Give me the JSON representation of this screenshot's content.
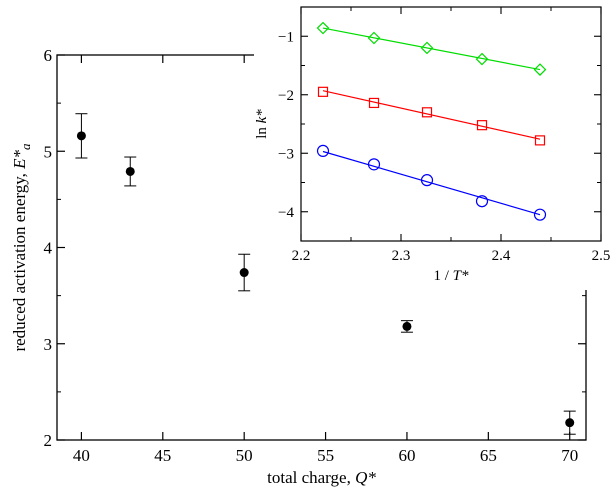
{
  "chart_data": [
    {
      "type": "scatter",
      "title": "",
      "xlabel": "total charge, ",
      "xlabel_var": "Q*",
      "ylabel": "reduced activation energy, ",
      "ylabel_var": "E*",
      "ylabel_sub": "a",
      "xlim": [
        38.5,
        71
      ],
      "ylim": [
        2,
        6
      ],
      "xticks": [
        40,
        45,
        50,
        55,
        60,
        65,
        70
      ],
      "yticks": [
        2,
        3,
        4,
        5,
        6
      ],
      "grid": false,
      "marker": "filled-circle",
      "series": [
        {
          "x": [
            40,
            43,
            50,
            60,
            70
          ],
          "y": [
            5.16,
            4.79,
            3.74,
            3.18,
            2.18
          ],
          "yerr": [
            0.23,
            0.15,
            0.19,
            0.06,
            0.12
          ]
        }
      ]
    },
    {
      "type": "scatter",
      "inset": true,
      "title": "",
      "xlabel": "1 / ",
      "xlabel_var": "T*",
      "ylabel": "ln ",
      "ylabel_var": "k*",
      "xlim": [
        2.2,
        2.5
      ],
      "ylim": [
        -4.5,
        -0.5
      ],
      "xticks": [
        2.2,
        2.3,
        2.4,
        2.5
      ],
      "yticks": [
        -4,
        -3,
        -2,
        -1
      ],
      "grid": false,
      "series": [
        {
          "color": "#00dd00",
          "marker": "diamond",
          "x": [
            2.222,
            2.273,
            2.326,
            2.381,
            2.439
          ],
          "y": [
            -0.86,
            -1.03,
            -1.2,
            -1.39,
            -1.57
          ],
          "fit": [
            [
              2.222,
              -0.86
            ],
            [
              2.439,
              -1.57
            ]
          ]
        },
        {
          "color": "#ff0000",
          "marker": "square",
          "x": [
            2.222,
            2.273,
            2.326,
            2.381,
            2.439
          ],
          "y": [
            -1.95,
            -2.14,
            -2.3,
            -2.52,
            -2.78
          ],
          "fit": [
            [
              2.222,
              -1.93
            ],
            [
              2.439,
              -2.76
            ]
          ]
        },
        {
          "color": "#0000ff",
          "marker": "circle",
          "x": [
            2.222,
            2.273,
            2.326,
            2.381,
            2.439
          ],
          "y": [
            -2.96,
            -3.19,
            -3.46,
            -3.82,
            -4.05
          ],
          "fit": [
            [
              2.222,
              -2.97
            ],
            [
              2.439,
              -4.05
            ]
          ]
        }
      ]
    }
  ]
}
